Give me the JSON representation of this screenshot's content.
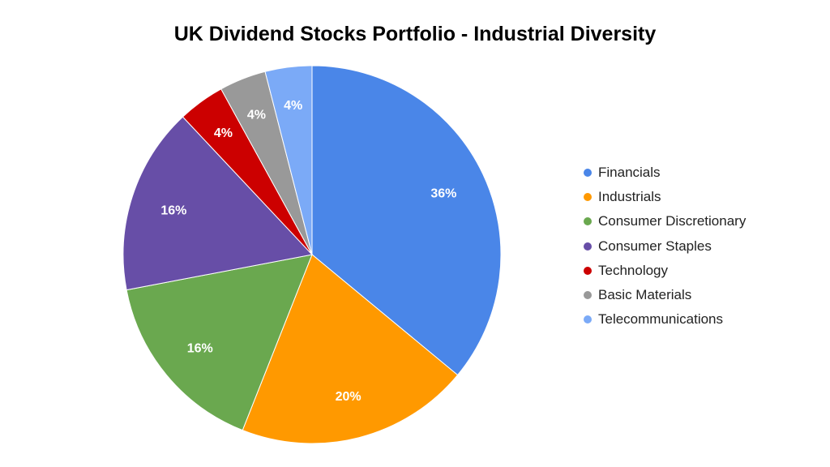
{
  "chart_data": {
    "type": "pie",
    "title": "UK Dividend Stocks Portfolio - Industrial Diversity",
    "legend_position": "right",
    "start_angle": "top, clockwise",
    "slices": [
      {
        "name": "Financials",
        "value": 36,
        "label": "36%",
        "color": "#4a86e8"
      },
      {
        "name": "Industrials",
        "value": 20,
        "label": "20%",
        "color": "#ff9900"
      },
      {
        "name": "Consumer Discretionary",
        "value": 16,
        "label": "16%",
        "color": "#6aa84f"
      },
      {
        "name": "Consumer Staples",
        "value": 16,
        "label": "16%",
        "color": "#674ea7"
      },
      {
        "name": "Technology",
        "value": 4,
        "label": "4%",
        "color": "#cc0000"
      },
      {
        "name": "Basic Materials",
        "value": 4,
        "label": "4%",
        "color": "#999999"
      },
      {
        "name": "Telecommunications",
        "value": 4,
        "label": "4%",
        "color": "#7baaf7"
      }
    ]
  }
}
